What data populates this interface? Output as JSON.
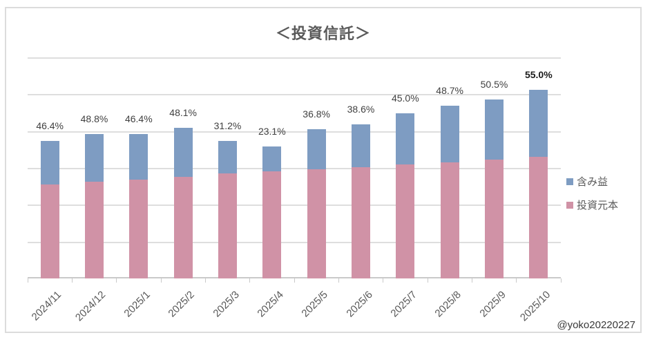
{
  "chart": {
    "title": "＜投資信託＞",
    "watermark": "@yoko20220227"
  },
  "colors": {
    "gain_blue": "#7e9cc2",
    "principal_pink": "#d092a6",
    "gridline": "#dedede",
    "axis_line": "#c9c9c9",
    "frame_border": "#dcdcdc",
    "title_text": "#595959",
    "data_label_text": "#3f3f3f",
    "axis_label_text": "#595959"
  },
  "legend": {
    "items": [
      {
        "label": "含み益",
        "color": "#7e9cc2"
      },
      {
        "label": "投資元本",
        "color": "#d092a6"
      }
    ]
  },
  "chart_data": {
    "type": "bar",
    "stacked": true,
    "title": "＜投資信託＞",
    "categories": [
      "2024/11",
      "2024/12",
      "2025/1",
      "2025/2",
      "2025/3",
      "2025/4",
      "2025/5",
      "2025/6",
      "2025/7",
      "2025/8",
      "2025/9",
      "2025/10"
    ],
    "series": [
      {
        "name": "投資元本",
        "color": "#d092a6",
        "values": [
          2.55,
          2.63,
          2.68,
          2.76,
          2.85,
          2.91,
          2.96,
          3.02,
          3.09,
          3.15,
          3.23,
          3.3
        ]
      },
      {
        "name": "含み益",
        "color": "#7e9cc2",
        "values": [
          1.18,
          1.28,
          1.24,
          1.33,
          0.89,
          0.67,
          1.09,
          1.17,
          1.39,
          1.53,
          1.63,
          1.82
        ]
      }
    ],
    "data_labels": [
      {
        "text": "46.4%",
        "bold": false
      },
      {
        "text": "48.8%",
        "bold": false
      },
      {
        "text": "46.4%",
        "bold": false
      },
      {
        "text": "48.1%",
        "bold": false
      },
      {
        "text": "31.2%",
        "bold": false
      },
      {
        "text": "23.1%",
        "bold": false
      },
      {
        "text": "36.8%",
        "bold": false
      },
      {
        "text": "38.6%",
        "bold": false
      },
      {
        "text": "45.0%",
        "bold": false
      },
      {
        "text": "48.7%",
        "bold": false
      },
      {
        "text": "50.5%",
        "bold": false
      },
      {
        "text": "55.0%",
        "bold": true
      }
    ],
    "xlabel": "",
    "ylabel": "",
    "ylim": [
      0,
      6
    ],
    "y_axis_tick_labels_visible": false,
    "gridlines": true,
    "gridline_count": 6,
    "legend_position": "right",
    "x_tick_label_rotation_deg": 45
  }
}
